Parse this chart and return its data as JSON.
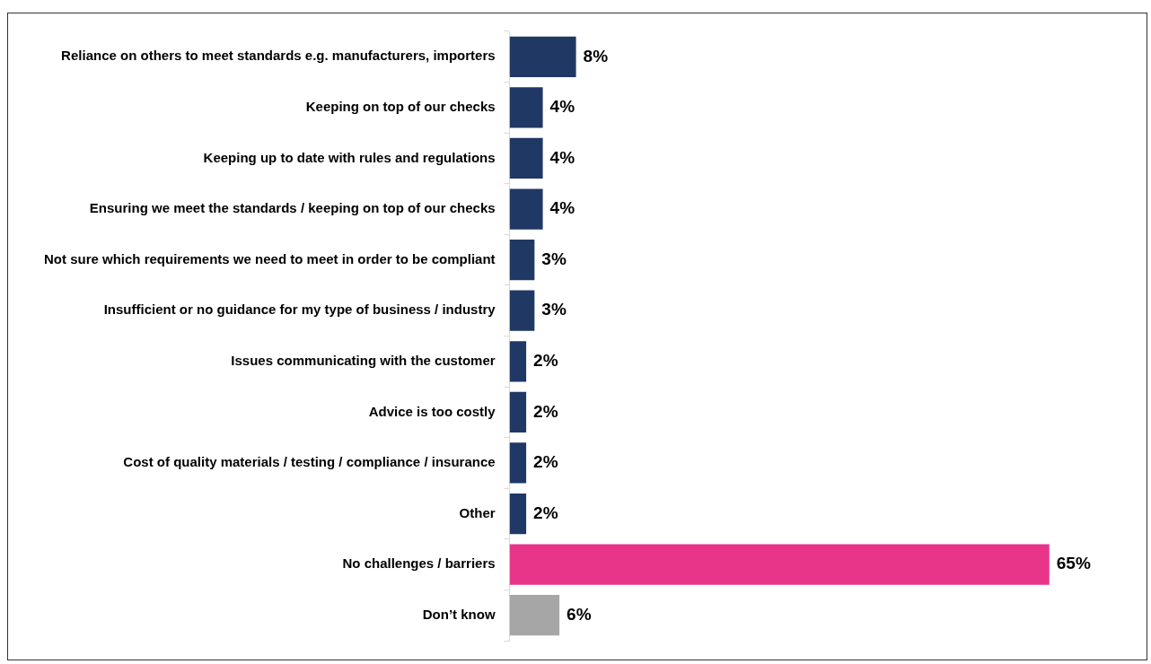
{
  "chart_data": {
    "type": "bar",
    "orientation": "horizontal",
    "categories": [
      "Reliance on others to meet standards e.g. manufacturers, importers",
      "Keeping on top of our checks",
      "Keeping up to date with rules and regulations",
      "Ensuring we meet the standards / keeping on top of our checks",
      "Not sure which requirements we need to meet in order to be compliant",
      "Insufficient or no guidance for my type of business / industry",
      "Issues communicating with the customer",
      "Advice is too costly",
      "Cost of quality materials / testing / compliance / insurance",
      "Other",
      "No challenges / barriers",
      "Don’t know"
    ],
    "values": [
      8,
      4,
      4,
      4,
      3,
      3,
      2,
      2,
      2,
      2,
      65,
      6
    ],
    "colors": [
      "#203864",
      "#203864",
      "#203864",
      "#203864",
      "#203864",
      "#203864",
      "#203864",
      "#203864",
      "#203864",
      "#203864",
      "#e8358a",
      "#a6a6a6"
    ],
    "value_labels": [
      "8%",
      "4%",
      "4%",
      "4%",
      "3%",
      "3%",
      "2%",
      "2%",
      "2%",
      "2%",
      "65%",
      "6%"
    ],
    "grid": false,
    "legend": false
  }
}
